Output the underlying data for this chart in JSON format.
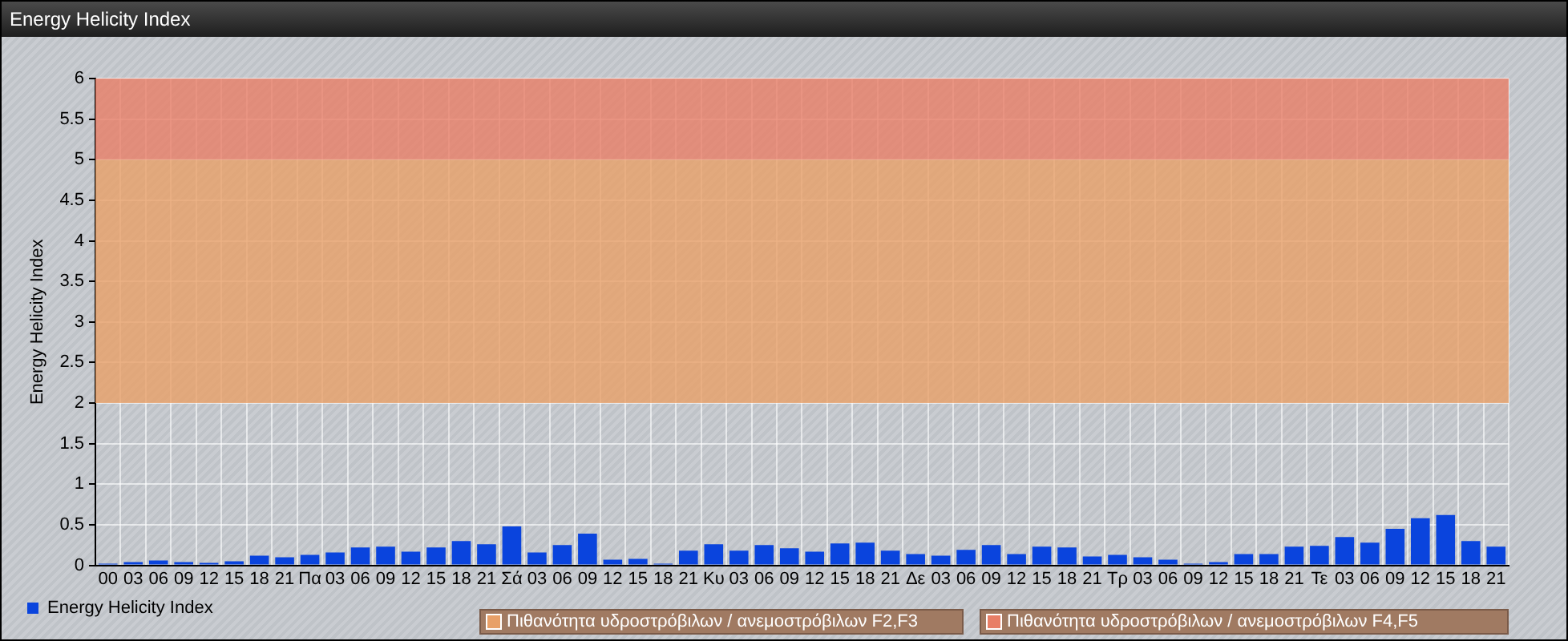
{
  "chart_data": {
    "type": "bar",
    "title": "Energy Helicity Index",
    "ylabel": "Energy Helicity Index",
    "categories": [
      "00",
      "03",
      "06",
      "09",
      "12",
      "15",
      "18",
      "21",
      "Πα",
      "03",
      "06",
      "09",
      "12",
      "15",
      "18",
      "21",
      "Σά",
      "03",
      "06",
      "09",
      "12",
      "15",
      "18",
      "21",
      "Κυ",
      "03",
      "06",
      "09",
      "12",
      "15",
      "18",
      "21",
      "Δε",
      "03",
      "06",
      "09",
      "12",
      "15",
      "18",
      "21",
      "Τρ",
      "03",
      "06",
      "09",
      "12",
      "15",
      "18",
      "21",
      "Τε",
      "03",
      "06",
      "09",
      "12",
      "15",
      "18",
      "21"
    ],
    "series": [
      {
        "name": "Energy Helicity Index",
        "color": "#0a44dd",
        "values": [
          0.02,
          0.04,
          0.06,
          0.04,
          0.03,
          0.05,
          0.12,
          0.1,
          0.13,
          0.16,
          0.22,
          0.23,
          0.17,
          0.22,
          0.3,
          0.26,
          0.48,
          0.16,
          0.25,
          0.39,
          0.07,
          0.08,
          0.02,
          0.18,
          0.26,
          0.18,
          0.25,
          0.21,
          0.17,
          0.27,
          0.28,
          0.18,
          0.14,
          0.12,
          0.19,
          0.25,
          0.14,
          0.23,
          0.22,
          0.11,
          0.13,
          0.1,
          0.07,
          0.02,
          0.04,
          0.14,
          0.14,
          0.23,
          0.24,
          0.35,
          0.28,
          0.45,
          0.58,
          0.62,
          0.3,
          0.23
        ]
      }
    ],
    "ylim": [
      0,
      6
    ],
    "yticks": [
      0,
      0.5,
      1,
      1.5,
      2,
      2.5,
      3,
      3.5,
      4,
      4.5,
      5,
      5.5,
      6
    ],
    "bands": [
      {
        "axis": "y",
        "from": 2,
        "to": 5,
        "label": "Πιθανότητα υδροστρόβιλων / ανεμοστρόβιλων F2,F3",
        "color": "#e8a068"
      },
      {
        "axis": "y",
        "from": 5,
        "to": 6,
        "label": "Πιθανότητα υδροστρόβιλων / ανεμοστρόβιλων F4,F5",
        "color": "#e87e66"
      }
    ],
    "grid": true,
    "legend": "bottom left"
  }
}
